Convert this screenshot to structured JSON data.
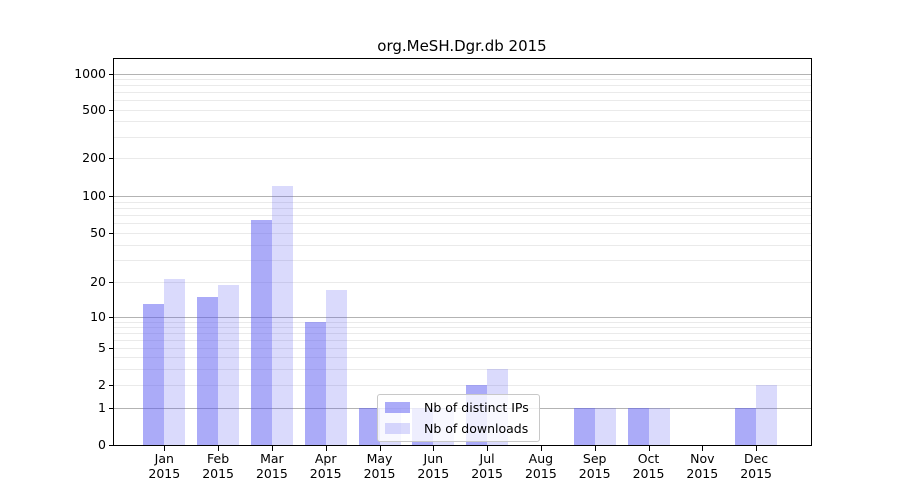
{
  "chart_data": {
    "type": "bar",
    "title": "org.MeSH.Dgr.db 2015",
    "x_categories": [
      {
        "month": "Jan",
        "year": "2015"
      },
      {
        "month": "Feb",
        "year": "2015"
      },
      {
        "month": "Mar",
        "year": "2015"
      },
      {
        "month": "Apr",
        "year": "2015"
      },
      {
        "month": "May",
        "year": "2015"
      },
      {
        "month": "Jun",
        "year": "2015"
      },
      {
        "month": "Jul",
        "year": "2015"
      },
      {
        "month": "Aug",
        "year": "2015"
      },
      {
        "month": "Sep",
        "year": "2015"
      },
      {
        "month": "Oct",
        "year": "2015"
      },
      {
        "month": "Nov",
        "year": "2015"
      },
      {
        "month": "Dec",
        "year": "2015"
      }
    ],
    "series": [
      {
        "name": "Nb of distinct IPs",
        "key": "distinct-ips",
        "values": [
          13,
          15,
          64,
          9,
          1,
          1,
          2,
          0,
          1,
          1,
          0,
          1
        ]
      },
      {
        "name": "Nb of downloads",
        "key": "downloads",
        "values": [
          21,
          19,
          120,
          17,
          1,
          1,
          3,
          0,
          1,
          1,
          0,
          2
        ]
      }
    ],
    "y_axis": {
      "scale": "log-with-zero-floor",
      "tick_values": [
        0,
        1,
        2,
        5,
        10,
        20,
        50,
        100,
        200,
        500,
        1000
      ],
      "range": [
        0,
        1000
      ],
      "grid": "on"
    },
    "legend": {
      "position": "lower-center",
      "labels": [
        "Nb of distinct IPs",
        "Nb of downloads"
      ]
    },
    "colors": {
      "distinct_ips_bar": "rgba(87,87,242,0.50)",
      "downloads_bar": "rgba(87,87,242,0.22)",
      "major_gridline": "#b3b3b3",
      "minor_gridline": "#eaeaea",
      "axis": "#000000"
    }
  }
}
